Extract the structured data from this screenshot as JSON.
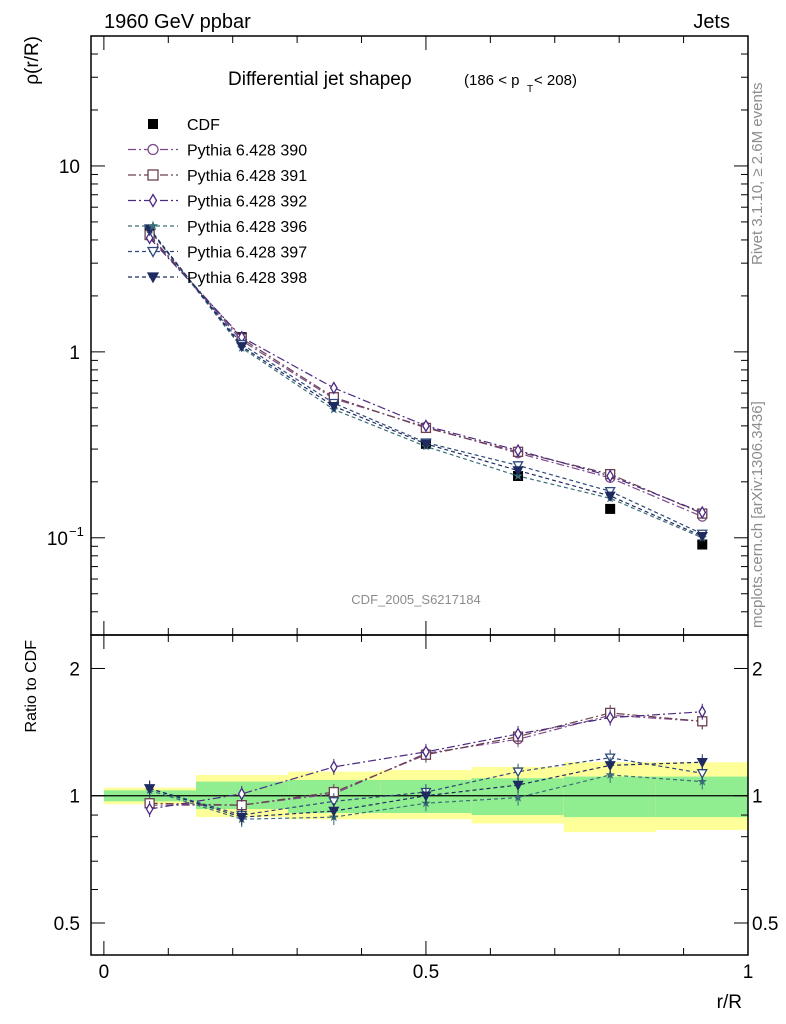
{
  "header": {
    "left": "1960 GeV ppbar",
    "right": "Jets"
  },
  "side_labels": {
    "rivet": "Rivet 3.1.10, ≥ 2.6M events",
    "mcplots": "mcplots.cern.ch [arXiv:1306.3436]"
  },
  "chart_data": [
    {
      "type": "line",
      "title_main": "Differential jet shapeρ",
      "title_sub_prefix": "(186 < p",
      "title_sub_index": "T",
      "title_sub_suffix": " < 208)",
      "ylabel": "ρ(r/R)",
      "xlabel": "",
      "yscale": "log",
      "ylim": [
        0.03,
        50
      ],
      "xlim": [
        -0.02,
        1.0
      ],
      "y_ticks": [
        {
          "v": 10,
          "label": "10"
        },
        {
          "v": 1,
          "label": "1"
        },
        {
          "v": 0.1,
          "label_base": "10",
          "label_exp": "−1"
        }
      ],
      "watermark": "CDF_2005_S6217184",
      "x": [
        0.071,
        0.214,
        0.357,
        0.5,
        0.643,
        0.786,
        0.929
      ],
      "series": [
        {
          "name": "CDF",
          "color": "#000000",
          "marker": "square-filled",
          "dash": "none",
          "values": [
            4.45,
            1.2,
            0.55,
            0.32,
            0.215,
            0.143,
            0.092
          ]
        },
        {
          "name": "Pythia 6.428 390",
          "color": "#7b4a8c",
          "marker": "circle-open",
          "dash": "8,3,2,3",
          "values": [
            4.2,
            1.15,
            0.56,
            0.395,
            0.285,
            0.21,
            0.13
          ]
        },
        {
          "name": "Pythia 6.428 391",
          "color": "#6b4050",
          "marker": "square-open",
          "dash": "8,3,2,3",
          "values": [
            4.25,
            1.18,
            0.57,
            0.39,
            0.29,
            0.22,
            0.135
          ]
        },
        {
          "name": "Pythia 6.428 392",
          "color": "#4b2a82",
          "marker": "diamond-open",
          "dash": "8,3,2,3",
          "values": [
            4.1,
            1.2,
            0.64,
            0.4,
            0.295,
            0.215,
            0.137
          ]
        },
        {
          "name": "Pythia 6.428 396",
          "color": "#3b6e7a",
          "marker": "star",
          "dash": "4,3",
          "values": [
            4.55,
            1.05,
            0.49,
            0.31,
            0.215,
            0.163,
            0.1
          ]
        },
        {
          "name": "Pythia 6.428 397",
          "color": "#2e4a7a",
          "marker": "triangle-down-open",
          "dash": "4,3",
          "values": [
            4.5,
            1.1,
            0.53,
            0.325,
            0.245,
            0.178,
            0.105
          ]
        },
        {
          "name": "Pythia 6.428 398",
          "color": "#1f2b60",
          "marker": "triangle-down-filled",
          "dash": "4,3",
          "values": [
            4.6,
            1.07,
            0.51,
            0.32,
            0.23,
            0.168,
            0.102
          ]
        }
      ]
    },
    {
      "type": "line",
      "ylabel": "Ratio to CDF",
      "xlabel": "r/R",
      "yscale": "log",
      "ylim": [
        0.42,
        2.4
      ],
      "xlim": [
        -0.02,
        1.0
      ],
      "x_ticks": [
        0,
        0.5,
        1
      ],
      "x_tick_labels": [
        "0",
        "0.5",
        "1"
      ],
      "y_ticks": [
        0.5,
        1,
        2
      ],
      "y_tick_labels": [
        "0.5",
        "1",
        "2"
      ],
      "bands": [
        {
          "x0": 0.0,
          "x1": 0.143,
          "inner": [
            0.97,
            1.03
          ],
          "outer": [
            0.955,
            1.045
          ]
        },
        {
          "x0": 0.143,
          "x1": 0.286,
          "inner": [
            0.93,
            1.08
          ],
          "outer": [
            0.89,
            1.12
          ]
        },
        {
          "x0": 0.286,
          "x1": 0.429,
          "inner": [
            0.91,
            1.09
          ],
          "outer": [
            0.88,
            1.14
          ]
        },
        {
          "x0": 0.429,
          "x1": 0.571,
          "inner": [
            0.91,
            1.09
          ],
          "outer": [
            0.88,
            1.15
          ]
        },
        {
          "x0": 0.571,
          "x1": 0.714,
          "inner": [
            0.9,
            1.1
          ],
          "outer": [
            0.86,
            1.17
          ]
        },
        {
          "x0": 0.714,
          "x1": 0.857,
          "inner": [
            0.89,
            1.11
          ],
          "outer": [
            0.82,
            1.2
          ]
        },
        {
          "x0": 0.857,
          "x1": 1.0,
          "inner": [
            0.89,
            1.11
          ],
          "outer": [
            0.83,
            1.2
          ]
        }
      ],
      "series": [
        {
          "name": "Pythia 6.428 390",
          "values": [
            0.95,
            0.95,
            1.01,
            1.26,
            1.36,
            1.55,
            1.5
          ]
        },
        {
          "name": "Pythia 6.428 391",
          "values": [
            0.96,
            0.95,
            1.02,
            1.25,
            1.38,
            1.57,
            1.5
          ]
        },
        {
          "name": "Pythia 6.428 392",
          "values": [
            0.93,
            1.01,
            1.17,
            1.27,
            1.4,
            1.53,
            1.58
          ]
        },
        {
          "name": "Pythia 6.428 396",
          "values": [
            1.03,
            0.88,
            0.89,
            0.96,
            0.99,
            1.12,
            1.08
          ]
        },
        {
          "name": "Pythia 6.428 397",
          "values": [
            1.04,
            0.9,
            0.97,
            1.02,
            1.14,
            1.23,
            1.13
          ]
        },
        {
          "name": "Pythia 6.428 398",
          "values": [
            1.04,
            0.89,
            0.92,
            1.0,
            1.06,
            1.18,
            1.2
          ]
        }
      ]
    }
  ]
}
